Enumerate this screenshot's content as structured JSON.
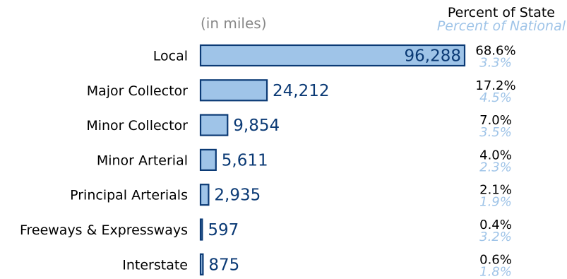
{
  "colors": {
    "bar_fill": "#9fc4e8",
    "bar_stroke": "#0b3a75",
    "value_text": "#0b3a75",
    "national_text": "#9fc4e8"
  },
  "header": {
    "unit_note": "(in miles)",
    "state_title": "Percent of State",
    "national_title": "Percent of National"
  },
  "chart_data": {
    "type": "bar",
    "orientation": "horizontal",
    "categories": [
      "Local",
      "Major Collector",
      "Minor Collector",
      "Minor Arterial",
      "Principal Arterials",
      "Freeways & Expressways",
      "Interstate"
    ],
    "series": [
      {
        "values": [
          96288,
          24212,
          9854,
          5611,
          2935,
          597,
          875
        ]
      }
    ],
    "value_labels": [
      "96,288",
      "24,212",
      "9,854",
      "5,611",
      "2,935",
      "597",
      "875"
    ],
    "percent_of_state": [
      "68.6%",
      "17.2%",
      "7.0%",
      "4.0%",
      "2.1%",
      "0.4%",
      "0.6%"
    ],
    "percent_of_national": [
      "3.3%",
      "4.5%",
      "3.5%",
      "2.3%",
      "1.9%",
      "3.2%",
      "1.8%"
    ],
    "xlim": [
      0,
      96288
    ],
    "grid": false,
    "legend": "none"
  }
}
